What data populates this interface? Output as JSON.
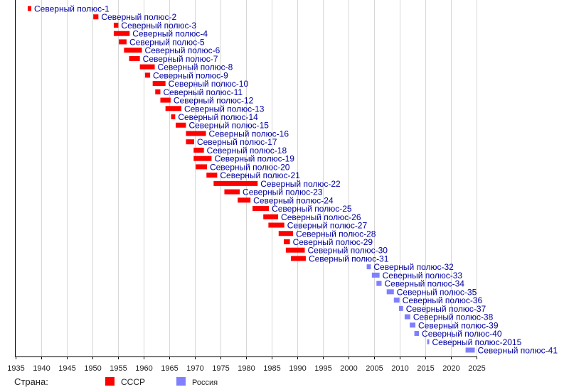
{
  "chart_data": {
    "type": "bar",
    "orientation": "horizontal-timeline",
    "title": "",
    "xlabel": "",
    "ylabel": "",
    "xlim": [
      1935,
      2025
    ],
    "xticks": [
      "1935",
      "1940",
      "1945",
      "1950",
      "1955",
      "1960",
      "1965",
      "1970",
      "1975",
      "1980",
      "1985",
      "1990",
      "1995",
      "2000",
      "2005",
      "2010",
      "2015",
      "2020",
      "2025"
    ],
    "grid": true,
    "legend": {
      "title": "Страна:",
      "placement": "bottom-left",
      "entries": [
        {
          "name": "СССР",
          "color": "#ff0000"
        },
        {
          "name": "Россия",
          "color": "#8080ff"
        }
      ]
    },
    "label_color": "#0000a0",
    "series": [
      {
        "name": "Северный полюс-1",
        "country": "СССР",
        "start": 1937.4,
        "end": 1938.1
      },
      {
        "name": "Северный полюс-2",
        "country": "СССР",
        "start": 1950.2,
        "end": 1951.2
      },
      {
        "name": "Северный полюс-3",
        "country": "СССР",
        "start": 1954.2,
        "end": 1955.1
      },
      {
        "name": "Северный полюс-4",
        "country": "СССР",
        "start": 1954.2,
        "end": 1957.3
      },
      {
        "name": "Северный полюс-5",
        "country": "СССР",
        "start": 1955.2,
        "end": 1956.7
      },
      {
        "name": "Северный полюс-6",
        "country": "СССР",
        "start": 1956.2,
        "end": 1959.7
      },
      {
        "name": "Северный полюс-7",
        "country": "СССР",
        "start": 1957.2,
        "end": 1959.3
      },
      {
        "name": "Северный полюс-8",
        "country": "СССР",
        "start": 1959.3,
        "end": 1962.2
      },
      {
        "name": "Северный полюс-9",
        "country": "СССР",
        "start": 1960.3,
        "end": 1961.3
      },
      {
        "name": "Северный полюс-10",
        "country": "СССР",
        "start": 1961.8,
        "end": 1964.3
      },
      {
        "name": "Северный полюс-11",
        "country": "СССР",
        "start": 1962.3,
        "end": 1963.3
      },
      {
        "name": "Северный полюс-12",
        "country": "СССР",
        "start": 1963.3,
        "end": 1965.3
      },
      {
        "name": "Северный полюс-13",
        "country": "СССР",
        "start": 1964.3,
        "end": 1967.4
      },
      {
        "name": "Северный полюс-14",
        "country": "СССР",
        "start": 1965.4,
        "end": 1966.2
      },
      {
        "name": "Северный полюс-15",
        "country": "СССР",
        "start": 1966.3,
        "end": 1968.3
      },
      {
        "name": "Северный полюс-16",
        "country": "СССР",
        "start": 1968.3,
        "end": 1972.2
      },
      {
        "name": "Северный полюс-17",
        "country": "СССР",
        "start": 1968.3,
        "end": 1969.9
      },
      {
        "name": "Северный полюс-18",
        "country": "СССР",
        "start": 1969.8,
        "end": 1971.8
      },
      {
        "name": "Северный полюс-19",
        "country": "СССР",
        "start": 1969.8,
        "end": 1973.3
      },
      {
        "name": "Северный полюс-20",
        "country": "СССР",
        "start": 1970.2,
        "end": 1972.4
      },
      {
        "name": "Северный полюс-21",
        "country": "СССР",
        "start": 1972.3,
        "end": 1974.4
      },
      {
        "name": "Северный полюс-22",
        "country": "СССР",
        "start": 1973.7,
        "end": 1982.3
      },
      {
        "name": "Северный полюс-23",
        "country": "СССР",
        "start": 1975.8,
        "end": 1978.8
      },
      {
        "name": "Северный полюс-24",
        "country": "СССР",
        "start": 1978.4,
        "end": 1980.9
      },
      {
        "name": "Северный полюс-25",
        "country": "СССР",
        "start": 1981.3,
        "end": 1984.5
      },
      {
        "name": "Северный полюс-26",
        "country": "СССР",
        "start": 1983.4,
        "end": 1986.3
      },
      {
        "name": "Северный полюс-27",
        "country": "СССР",
        "start": 1984.4,
        "end": 1987.5
      },
      {
        "name": "Северный полюс-28",
        "country": "СССР",
        "start": 1986.4,
        "end": 1989.2
      },
      {
        "name": "Северный полюс-29",
        "country": "СССР",
        "start": 1987.4,
        "end": 1988.6
      },
      {
        "name": "Северный полюс-30",
        "country": "СССР",
        "start": 1987.8,
        "end": 1991.5
      },
      {
        "name": "Северный полюс-31",
        "country": "СССР",
        "start": 1988.8,
        "end": 1991.7
      },
      {
        "name": "Северный полюс-32",
        "country": "Россия",
        "start": 2003.6,
        "end": 2004.4
      },
      {
        "name": "Северный полюс-33",
        "country": "Россия",
        "start": 2004.6,
        "end": 2006.1
      },
      {
        "name": "Северный полюс-34",
        "country": "Россия",
        "start": 2005.5,
        "end": 2006.5
      },
      {
        "name": "Северный полюс-35",
        "country": "Россия",
        "start": 2007.5,
        "end": 2008.9
      },
      {
        "name": "Северный полюс-36",
        "country": "Россия",
        "start": 2008.9,
        "end": 2010.0
      },
      {
        "name": "Северный полюс-37",
        "country": "Россия",
        "start": 2009.9,
        "end": 2010.7
      },
      {
        "name": "Северный полюс-38",
        "country": "Россия",
        "start": 2011.0,
        "end": 2012.1
      },
      {
        "name": "Северный полюс-39",
        "country": "Россия",
        "start": 2012.0,
        "end": 2013.1
      },
      {
        "name": "Северный полюс-40",
        "country": "Россия",
        "start": 2012.9,
        "end": 2013.8
      },
      {
        "name": "Северный полюс-2015",
        "country": "Россия",
        "start": 2015.4,
        "end": 2015.8
      },
      {
        "name": "Северный полюс-41",
        "country": "Россия",
        "start": 2022.9,
        "end": 2024.7
      }
    ]
  }
}
